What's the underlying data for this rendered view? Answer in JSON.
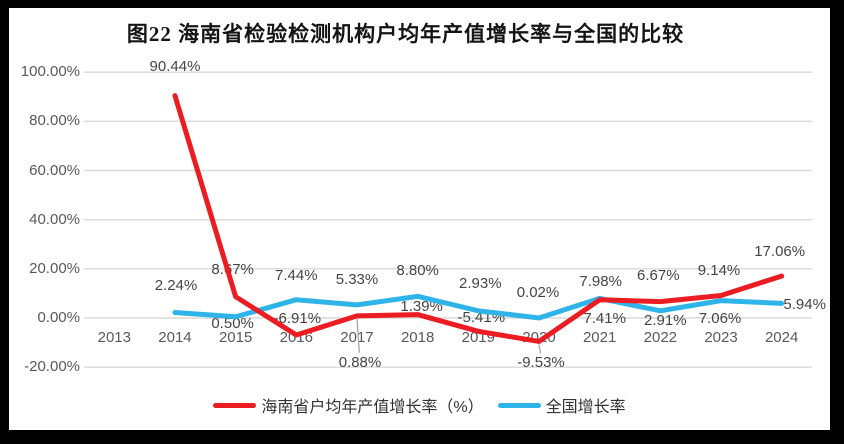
{
  "colors": {
    "hainan_series": "#ec1c23",
    "national_series": "#2fb4e9",
    "gridline": "#d9d9d9",
    "axis_text": "#595959",
    "data_label_text": "#454545",
    "leader_line": "#a6a6a6",
    "frame_black": "#000000",
    "panel_white": "#ffffff",
    "title_text": "#141414"
  },
  "chart_data": {
    "type": "line",
    "title": "图22  海南省检验检测机构户均年产值增长率与全国的比较",
    "categories": [
      "2013",
      "2014",
      "2015",
      "2016",
      "2017",
      "2018",
      "2019",
      "2020",
      "2021",
      "2022",
      "2023",
      "2024"
    ],
    "series": [
      {
        "name": "海南省户均年产值增长率（%）",
        "color": "#ec1c23",
        "values": [
          null,
          90.44,
          8.67,
          -6.91,
          0.88,
          1.39,
          -5.41,
          -9.53,
          7.41,
          6.67,
          9.14,
          17.06
        ],
        "labels": [
          null,
          "90.44%",
          "8.67%",
          "-6.91%",
          "0.88%",
          "1.39%",
          "-5.41%",
          "-9.53%",
          "7.41%",
          "6.67%",
          "9.14%",
          "17.06%"
        ],
        "label_offsets": [
          null,
          [
            0,
            -29
          ],
          [
            -3,
            -27
          ],
          [
            1,
            -16
          ],
          [
            3,
            47
          ],
          [
            4,
            -8
          ],
          [
            3,
            -13
          ],
          [
            2,
            22
          ],
          [
            5,
            19
          ],
          [
            -2,
            -26
          ],
          [
            -2,
            -25
          ],
          [
            -2,
            -24
          ]
        ],
        "leader_indices": [
          4,
          7
        ]
      },
      {
        "name": "全国增长率",
        "color": "#2fb4e9",
        "values": [
          null,
          2.24,
          0.5,
          7.44,
          5.33,
          8.8,
          2.93,
          0.02,
          7.98,
          2.91,
          7.06,
          5.94
        ],
        "labels": [
          null,
          "2.24%",
          "0.50%",
          "7.44%",
          "5.33%",
          "8.80%",
          "2.93%",
          "0.02%",
          "7.98%",
          "2.91%",
          "7.06%",
          "5.94%"
        ],
        "label_offsets": [
          null,
          [
            1,
            -26
          ],
          [
            -3,
            7
          ],
          [
            0,
            -24
          ],
          [
            0,
            -25
          ],
          [
            0,
            -25
          ],
          [
            2,
            -27
          ],
          [
            -1,
            -25
          ],
          [
            1,
            -16
          ],
          [
            5,
            10
          ],
          [
            -1,
            18
          ],
          [
            23,
            2
          ]
        ],
        "leader_indices": []
      }
    ],
    "y_ticks": [
      {
        "label": "100.00%",
        "value": 100
      },
      {
        "label": "80.00%",
        "value": 80
      },
      {
        "label": "60.00%",
        "value": 60
      },
      {
        "label": "40.00%",
        "value": 40
      },
      {
        "label": "20.00%",
        "value": 20
      },
      {
        "label": "0.00%",
        "value": 0
      },
      {
        "label": "-20.00%",
        "value": -20
      }
    ],
    "ylim": [
      -20,
      100
    ],
    "grid": true,
    "legend_position": "bottom"
  }
}
